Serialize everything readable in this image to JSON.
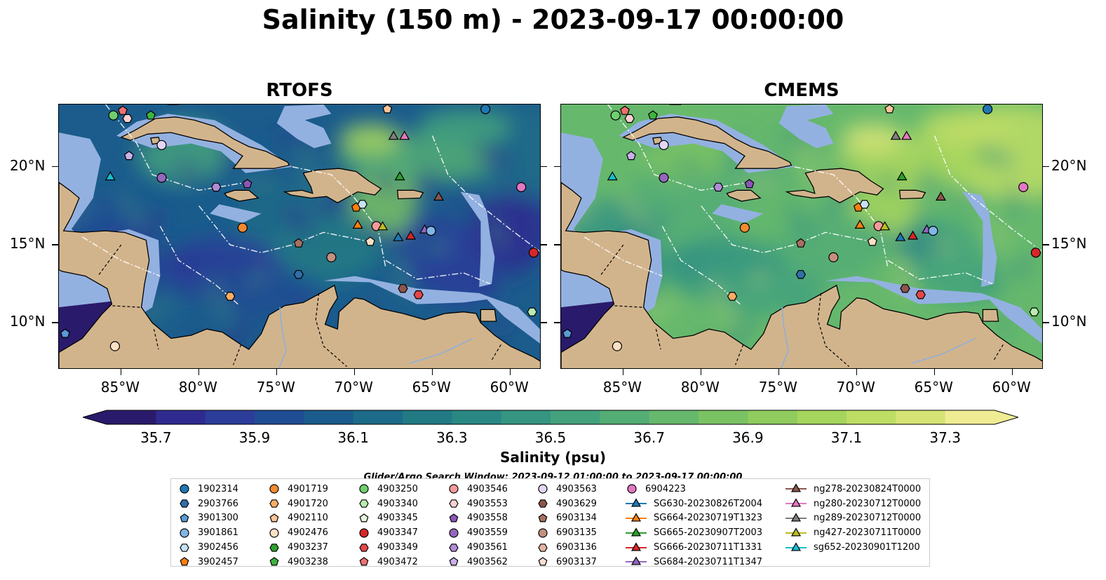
{
  "title": "Salinity (150 m) - 2023-09-17 00:00:00",
  "panels": [
    {
      "title": "RTOFS",
      "palette": "rtofs"
    },
    {
      "title": "CMEMS",
      "palette": "cmems"
    }
  ],
  "map_extent": {
    "lon": [
      -89,
      -58
    ],
    "lat": [
      7,
      24
    ]
  },
  "lon_ticks": [
    {
      "value": -85,
      "label": "85°W"
    },
    {
      "value": -80,
      "label": "80°W"
    },
    {
      "value": -75,
      "label": "75°W"
    },
    {
      "value": -70,
      "label": "70°W"
    },
    {
      "value": -65,
      "label": "65°W"
    },
    {
      "value": -60,
      "label": "60°W"
    }
  ],
  "lat_ticks": [
    {
      "value": 20,
      "label": "20°N"
    },
    {
      "value": 15,
      "label": "15°N"
    },
    {
      "value": 10,
      "label": "10°N"
    }
  ],
  "colorbar": {
    "title": "Salinity (psu)",
    "min": 35.6,
    "max": 37.4,
    "levels": 18,
    "tick_values": [
      35.7,
      35.9,
      36.1,
      36.3,
      36.5,
      36.7,
      36.9,
      37.1,
      37.3
    ],
    "tick_labels": [
      "35.7",
      "35.9",
      "36.1",
      "36.3",
      "36.5",
      "36.7",
      "36.9",
      "37.1",
      "37.3"
    ],
    "colors": [
      "#2a1a6b",
      "#2e2a8f",
      "#2c3d99",
      "#1f4d93",
      "#1b5c8c",
      "#1c6b88",
      "#227a85",
      "#2a8884",
      "#359581",
      "#43a27c",
      "#53ad75",
      "#66b86c",
      "#7ac263",
      "#8fcb5d",
      "#a5d55d",
      "#bddd65",
      "#d5e475",
      "#f0ec94"
    ]
  },
  "search_window": "Glider/Argo Search Window: 2023-09-12 01:00:00 to 2023-09-17 00:00:00",
  "legend": {
    "columns": [
      [
        {
          "label": "1902314",
          "marker": "circle",
          "color": "#1f77b4"
        },
        {
          "label": "2903766",
          "marker": "hexagon",
          "color": "#2f6fa8"
        },
        {
          "label": "3901300",
          "marker": "pentagon",
          "color": "#5a9bd5"
        },
        {
          "label": "3901861",
          "marker": "circle",
          "color": "#7fb6e6"
        },
        {
          "label": "3902456",
          "marker": "hexagon",
          "color": "#c6e3f7"
        },
        {
          "label": "3902457",
          "marker": "pentagon",
          "color": "#ff7f0e"
        }
      ],
      [
        {
          "label": "4901719",
          "marker": "circle",
          "color": "#f28a30"
        },
        {
          "label": "4901720",
          "marker": "hexagon",
          "color": "#f9ad66"
        },
        {
          "label": "4902110",
          "marker": "pentagon",
          "color": "#fbc59a"
        },
        {
          "label": "4902476",
          "marker": "circle",
          "color": "#fde0c3"
        },
        {
          "label": "4903237",
          "marker": "hexagon",
          "color": "#2ca02c"
        },
        {
          "label": "4903238",
          "marker": "pentagon",
          "color": "#3fb43f"
        }
      ],
      [
        {
          "label": "4903250",
          "marker": "circle",
          "color": "#6fcf6f"
        },
        {
          "label": "4903340",
          "marker": "hexagon",
          "color": "#b8ecb0"
        },
        {
          "label": "4903345",
          "marker": "pentagon",
          "color": "#e3f8dc"
        },
        {
          "label": "4903347",
          "marker": "circle",
          "color": "#d62728"
        },
        {
          "label": "4903349",
          "marker": "hexagon",
          "color": "#e3474a"
        },
        {
          "label": "4903472",
          "marker": "pentagon",
          "color": "#f07070"
        }
      ],
      [
        {
          "label": "4903546",
          "marker": "circle",
          "color": "#f59a9a"
        },
        {
          "label": "4903553",
          "marker": "hexagon",
          "color": "#fcd1d1"
        },
        {
          "label": "4903558",
          "marker": "pentagon",
          "color": "#8c55b8"
        },
        {
          "label": "4903559",
          "marker": "circle",
          "color": "#9467bd"
        },
        {
          "label": "4903561",
          "marker": "hexagon",
          "color": "#b08cd6"
        },
        {
          "label": "4903562",
          "marker": "pentagon",
          "color": "#cbb0ea"
        }
      ],
      [
        {
          "label": "4903563",
          "marker": "circle",
          "color": "#e4d6f5"
        },
        {
          "label": "4903629",
          "marker": "hexagon",
          "color": "#8c564b"
        },
        {
          "label": "6903134",
          "marker": "pentagon",
          "color": "#a86f62"
        },
        {
          "label": "6903135",
          "marker": "circle",
          "color": "#c48f7e"
        },
        {
          "label": "6903136",
          "marker": "hexagon",
          "color": "#e3b3a4"
        },
        {
          "label": "6903137",
          "marker": "pentagon",
          "color": "#fbdfd5"
        }
      ],
      [
        {
          "label": "6904223",
          "marker": "circle",
          "color": "#e377c2"
        },
        {
          "label": "SG630-20230826T2004",
          "marker": "triangle-line",
          "color": "#1f77b4"
        },
        {
          "label": "SG664-20230719T1323",
          "marker": "triangle-line",
          "color": "#ff7f0e"
        },
        {
          "label": "SG665-20230907T2003",
          "marker": "triangle-line",
          "color": "#2ca02c"
        },
        {
          "label": "SG666-20230711T1331",
          "marker": "triangle-line",
          "color": "#d62728"
        },
        {
          "label": "SG684-20230711T1347",
          "marker": "triangle-line",
          "color": "#9467bd"
        }
      ],
      [
        {
          "label": "ng278-20230824T0000",
          "marker": "triangle-line",
          "color": "#8c564b"
        },
        {
          "label": "ng280-20230712T0000",
          "marker": "triangle-line",
          "color": "#e377c2"
        },
        {
          "label": "ng289-20230712T0000",
          "marker": "triangle-line",
          "color": "#7f7f7f"
        },
        {
          "label": "ng427-20230711T0000",
          "marker": "triangle-line",
          "color": "#bcbd22"
        },
        {
          "label": "sg652-20230901T1200",
          "marker": "triangle-line",
          "color": "#17becf"
        }
      ]
    ]
  },
  "platforms": [
    {
      "lon": -85.5,
      "lat": 23.3,
      "marker": "circle",
      "color": "#6fcf6f"
    },
    {
      "lon": -84.9,
      "lat": 23.6,
      "marker": "pentagon",
      "color": "#f07070"
    },
    {
      "lon": -84.6,
      "lat": 23.1,
      "marker": "hexagon",
      "color": "#fcd1d1"
    },
    {
      "lon": -83.1,
      "lat": 23.3,
      "marker": "pentagon",
      "color": "#3fb43f"
    },
    {
      "lon": -67.9,
      "lat": 23.7,
      "marker": "pentagon",
      "color": "#fbc59a"
    },
    {
      "lon": -61.6,
      "lat": 23.7,
      "marker": "circle",
      "color": "#1f77b4"
    },
    {
      "lon": -84.5,
      "lat": 20.7,
      "marker": "pentagon",
      "color": "#cbb0ea"
    },
    {
      "lon": -82.4,
      "lat": 21.4,
      "marker": "circle",
      "color": "#e4d6f5"
    },
    {
      "lon": -85.7,
      "lat": 19.4,
      "marker": "triangle",
      "color": "#17becf"
    },
    {
      "lon": -82.4,
      "lat": 19.3,
      "marker": "circle",
      "color": "#9467bd"
    },
    {
      "lon": -78.9,
      "lat": 18.7,
      "marker": "hexagon",
      "color": "#b08cd6"
    },
    {
      "lon": -76.9,
      "lat": 18.9,
      "marker": "pentagon",
      "color": "#8c55b8"
    },
    {
      "lon": -67.5,
      "lat": 22.0,
      "marker": "triangle",
      "color": "#7f7f7f"
    },
    {
      "lon": -66.8,
      "lat": 22.0,
      "marker": "triangle",
      "color": "#e377c2"
    },
    {
      "lon": -67.1,
      "lat": 19.4,
      "marker": "triangle",
      "color": "#2ca02c"
    },
    {
      "lon": -64.6,
      "lat": 18.1,
      "marker": "triangle",
      "color": "#8c564b"
    },
    {
      "lon": -59.3,
      "lat": 18.7,
      "marker": "circle",
      "color": "#e377c2"
    },
    {
      "lon": -69.9,
      "lat": 17.4,
      "marker": "pentagon",
      "color": "#ff7f0e"
    },
    {
      "lon": -69.5,
      "lat": 17.6,
      "marker": "hexagon",
      "color": "#c6e3f7"
    },
    {
      "lon": -77.2,
      "lat": 16.1,
      "marker": "circle",
      "color": "#f28a30"
    },
    {
      "lon": -69.8,
      "lat": 16.3,
      "marker": "triangle",
      "color": "#ff7f0e"
    },
    {
      "lon": -68.6,
      "lat": 16.2,
      "marker": "circle",
      "color": "#f59a9a"
    },
    {
      "lon": -68.2,
      "lat": 16.2,
      "marker": "triangle",
      "color": "#bcbd22"
    },
    {
      "lon": -69.0,
      "lat": 15.2,
      "marker": "pentagon",
      "color": "#fde0c3"
    },
    {
      "lon": -67.2,
      "lat": 15.5,
      "marker": "triangle",
      "color": "#1f77b4"
    },
    {
      "lon": -66.4,
      "lat": 15.6,
      "marker": "triangle",
      "color": "#d62728"
    },
    {
      "lon": -65.5,
      "lat": 16.0,
      "marker": "triangle",
      "color": "#9467bd"
    },
    {
      "lon": -65.1,
      "lat": 15.9,
      "marker": "circle",
      "color": "#7fb6e6"
    },
    {
      "lon": -73.6,
      "lat": 15.1,
      "marker": "pentagon",
      "color": "#a86f62"
    },
    {
      "lon": -73.6,
      "lat": 13.1,
      "marker": "hexagon",
      "color": "#2f6fa8"
    },
    {
      "lon": -71.5,
      "lat": 14.2,
      "marker": "circle",
      "color": "#c48f7e"
    },
    {
      "lon": -66.9,
      "lat": 12.2,
      "marker": "hexagon",
      "color": "#8c564b"
    },
    {
      "lon": -65.9,
      "lat": 11.8,
      "marker": "hexagon",
      "color": "#e3474a"
    },
    {
      "lon": -58.5,
      "lat": 14.5,
      "marker": "circle",
      "color": "#d62728"
    },
    {
      "lon": -58.6,
      "lat": 10.7,
      "marker": "hexagon",
      "color": "#b8ecb0"
    },
    {
      "lon": -78.0,
      "lat": 11.7,
      "marker": "hexagon",
      "color": "#f9ad66"
    },
    {
      "lon": -88.6,
      "lat": 9.3,
      "marker": "pentagon",
      "color": "#5a9bd5"
    },
    {
      "lon": -85.4,
      "lat": 8.5,
      "marker": "circle",
      "color": "#fde0c3"
    }
  ],
  "land_color": "#d2b48c",
  "shelf_color": "#93b1e0",
  "pacific_color": "#2a1a6b"
}
